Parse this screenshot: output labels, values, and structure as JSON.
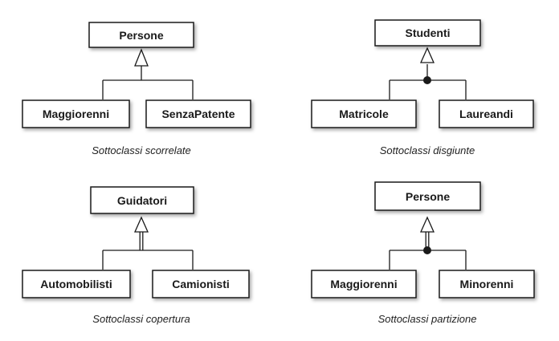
{
  "diagrams": [
    {
      "parent": "Persone",
      "children": [
        "Maggiorenni",
        "SenzaPatente"
      ],
      "caption": "Sottoclassi scorrelate",
      "disjoint": false,
      "total": false
    },
    {
      "parent": "Studenti",
      "children": [
        "Matricole",
        "Laureandi"
      ],
      "caption": "Sottoclassi disgiunte",
      "disjoint": true,
      "total": false
    },
    {
      "parent": "Guidatori",
      "children": [
        "Automobilisti",
        "Camionisti"
      ],
      "caption": "Sottoclassi copertura",
      "disjoint": false,
      "total": true
    },
    {
      "parent": "Persone",
      "children": [
        "Maggiorenni",
        "Minorenni"
      ],
      "caption": "Sottoclassi partizione",
      "disjoint": true,
      "total": true
    }
  ],
  "colors": {
    "stroke": "#1a1a1a",
    "box_fill": "#ffffff",
    "text": "#1a1a1a"
  }
}
